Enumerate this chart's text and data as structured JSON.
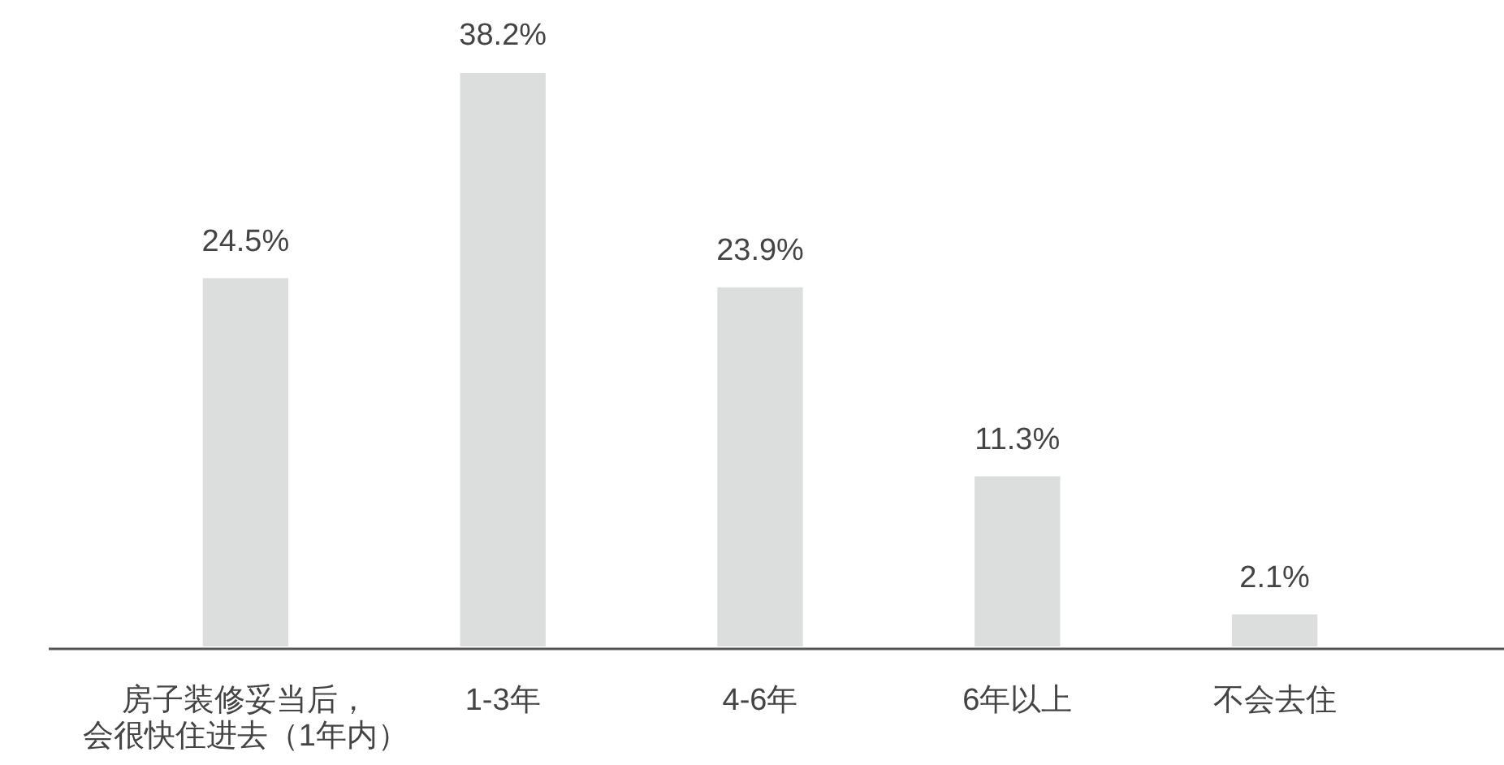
{
  "chart_data": {
    "type": "bar",
    "categories": [
      "房子装修妥当后，会很快住进去（1年内）",
      "1-3年",
      "4-6年",
      "6年以上",
      "不会去住"
    ],
    "values": [
      24.5,
      38.2,
      23.9,
      11.3,
      2.1
    ],
    "color": "#dcdddd",
    "value_labels": [
      "24.5%",
      "38.2%",
      "23.9%",
      "11.3%",
      "2.1%"
    ],
    "tick_labels": "x"
  }
}
